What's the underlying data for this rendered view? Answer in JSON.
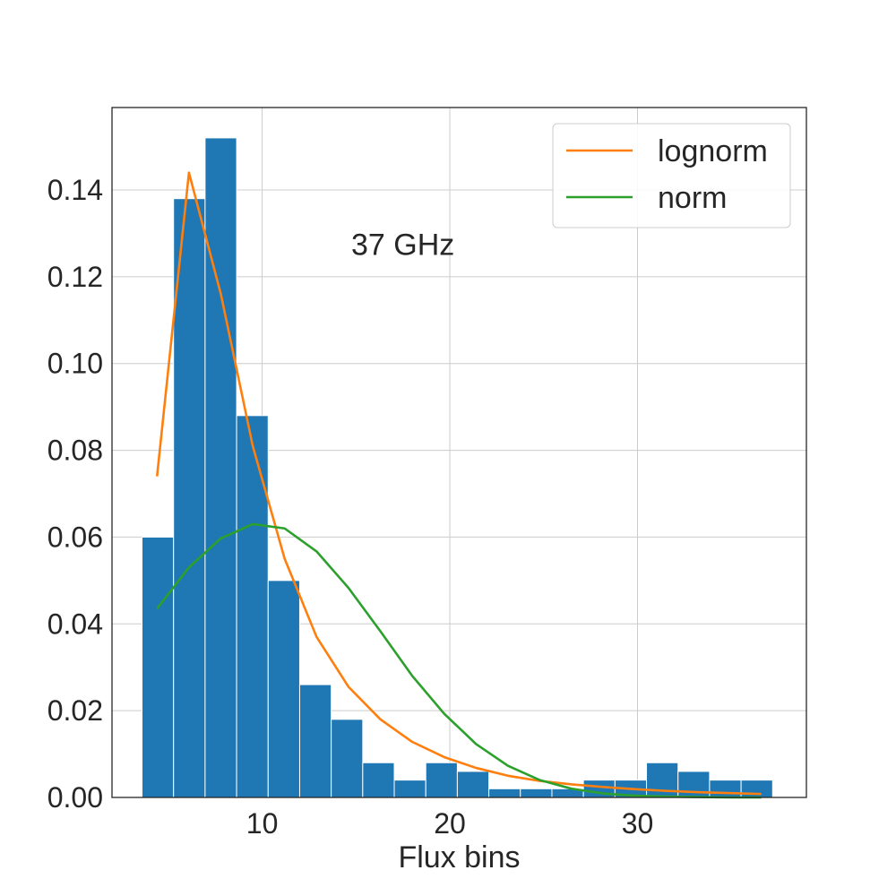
{
  "chart_data": {
    "type": "bar",
    "title": "",
    "xlabel": "Flux bins",
    "ylabel": "",
    "annotation": "37 GHz",
    "xlim": [
      2.0,
      39.0
    ],
    "ylim": [
      0.0,
      0.159
    ],
    "grid": true,
    "legend_position": "top-right",
    "xticks": [
      10,
      20,
      30
    ],
    "xtick_labels": [
      "10",
      "20",
      "30"
    ],
    "yticks": [
      0.0,
      0.02,
      0.04,
      0.06,
      0.08,
      0.1,
      0.12,
      0.14
    ],
    "ytick_labels": [
      "0.00",
      "0.02",
      "0.04",
      "0.06",
      "0.08",
      "0.10",
      "0.12",
      "0.14"
    ],
    "histogram": {
      "color": "#1f77b4",
      "bin_edges": [
        3.6,
        5.28,
        6.96,
        8.64,
        10.32,
        12.0,
        13.68,
        15.36,
        17.04,
        18.72,
        20.4,
        22.08,
        23.76,
        25.44,
        27.12,
        28.8,
        30.48,
        32.16,
        33.84,
        35.52,
        37.2
      ],
      "values": [
        0.06,
        0.138,
        0.152,
        0.088,
        0.05,
        0.026,
        0.018,
        0.008,
        0.004,
        0.008,
        0.006,
        0.002,
        0.002,
        0.002,
        0.004,
        0.004,
        0.008,
        0.006,
        0.004,
        0.004
      ]
    },
    "series": [
      {
        "name": "lognorm",
        "color": "#ff7f0e",
        "x": [
          4.4,
          6.1,
          7.8,
          9.5,
          11.2,
          12.9,
          14.6,
          16.3,
          18.0,
          19.7,
          21.4,
          23.1,
          24.8,
          26.5,
          28.2,
          29.9,
          31.6,
          33.3,
          35.0,
          36.6
        ],
        "y": [
          0.074,
          0.144,
          0.116,
          0.081,
          0.055,
          0.037,
          0.0255,
          0.018,
          0.0128,
          0.0093,
          0.0068,
          0.005,
          0.0038,
          0.003,
          0.0024,
          0.0019,
          0.0015,
          0.0012,
          0.001,
          0.0008
        ]
      },
      {
        "name": "norm",
        "color": "#2ca02c",
        "x": [
          4.4,
          6.1,
          7.8,
          9.5,
          11.2,
          12.9,
          14.6,
          16.3,
          18.0,
          19.7,
          21.4,
          23.1,
          24.8,
          26.5,
          28.2,
          29.9,
          31.6,
          33.3,
          35.0,
          36.6
        ],
        "y": [
          0.0435,
          0.053,
          0.0597,
          0.063,
          0.062,
          0.0567,
          0.0483,
          0.0383,
          0.028,
          0.0193,
          0.0123,
          0.0073,
          0.004,
          0.002,
          0.0009,
          0.0004,
          0.0002,
          0.0001,
          0.0,
          0.0
        ]
      }
    ]
  }
}
